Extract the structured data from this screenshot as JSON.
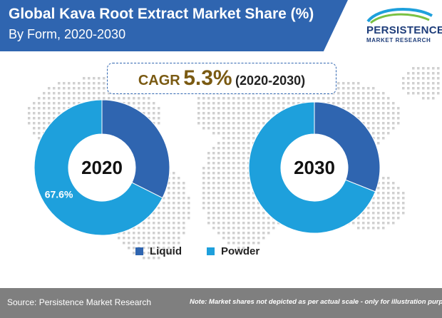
{
  "header": {
    "title": "Global Kava Root Extract Market Share (%)",
    "subtitle": "By Form, 2020-2030"
  },
  "logo": {
    "line1": "PERSISTENCE",
    "line2": "MARKET RESEARCH"
  },
  "cagr": {
    "label": "CAGR",
    "value": "5.3%",
    "period": "(2020-2030)"
  },
  "colors": {
    "liquid": "#2f65b0",
    "powder": "#1ea0dc",
    "header_bg": "#2f65b0",
    "footer_bg": "#7f7f7f",
    "map_dots": "#d0d0d0"
  },
  "chart_data": [
    {
      "type": "pie",
      "variant": "donut",
      "center_label": "2020",
      "categories": [
        "Liquid",
        "Powder"
      ],
      "values": [
        32.4,
        67.6
      ],
      "data_labels": [
        "",
        "67.6%"
      ]
    },
    {
      "type": "pie",
      "variant": "donut",
      "center_label": "2030",
      "categories": [
        "Liquid",
        "Powder"
      ],
      "values": [
        31,
        69
      ],
      "data_labels": [
        "",
        ""
      ]
    }
  ],
  "legend": {
    "items": [
      {
        "label": "Liquid"
      },
      {
        "label": "Powder"
      }
    ],
    "placement": "bottom-center"
  },
  "footer": {
    "source": "Source: Persistence Market Research",
    "note": "Note: Market shares not depicted as per actual scale - only for illustration purposes"
  }
}
